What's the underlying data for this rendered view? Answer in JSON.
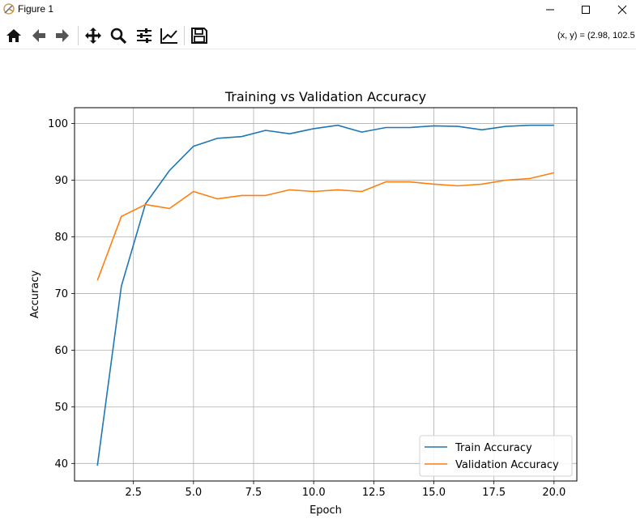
{
  "window": {
    "title": "Figure 1",
    "buttons": [
      {
        "name": "minimize-button",
        "icon": "minimize-icon"
      },
      {
        "name": "maximize-button",
        "icon": "maximize-icon"
      },
      {
        "name": "close-button",
        "icon": "close-icon"
      }
    ]
  },
  "toolbar": {
    "tools": [
      "home-icon",
      "back-arrow-icon",
      "forward-arrow-icon",
      "pan-icon",
      "zoom-icon",
      "configure-subplots-icon",
      "edit-axis-icon",
      "save-icon"
    ],
    "coords": "(x, y) = (2.98, 102.5"
  },
  "colors": {
    "train": "#1f77b4",
    "validation": "#ff7f0e",
    "grid": "#b0b0b0"
  },
  "chart_data": {
    "type": "line",
    "title": "Training vs Validation Accuracy",
    "xlabel": "Epoch",
    "ylabel": "Accuracy",
    "xlim": [
      0.05,
      20.95
    ],
    "ylim": [
      36.9,
      102.8
    ],
    "xticks": [
      2.5,
      5.0,
      7.5,
      10.0,
      12.5,
      15.0,
      17.5,
      20.0
    ],
    "xtick_labels": [
      "2.5",
      "5.0",
      "7.5",
      "10.0",
      "12.5",
      "15.0",
      "17.5",
      "20.0"
    ],
    "yticks": [
      40,
      50,
      60,
      70,
      80,
      90,
      100
    ],
    "ytick_labels": [
      "40",
      "50",
      "60",
      "70",
      "80",
      "90",
      "100"
    ],
    "grid": true,
    "legend_position": "lower-right",
    "x": [
      1,
      2,
      3,
      4,
      5,
      6,
      7,
      8,
      9,
      10,
      11,
      12,
      13,
      14,
      15,
      16,
      17,
      18,
      19,
      20
    ],
    "series": [
      {
        "name": "Train Accuracy",
        "values": [
          39.6,
          71.3,
          85.8,
          91.7,
          96.0,
          97.4,
          97.7,
          98.8,
          98.2,
          99.1,
          99.7,
          98.5,
          99.3,
          99.3,
          99.6,
          99.5,
          98.9,
          99.5,
          99.7,
          99.7
        ]
      },
      {
        "name": "Validation Accuracy",
        "values": [
          72.3,
          83.6,
          85.7,
          85.0,
          88.0,
          86.7,
          87.3,
          87.3,
          88.3,
          88.0,
          88.3,
          88.0,
          89.7,
          89.7,
          89.3,
          89.0,
          89.3,
          90.0,
          90.3,
          91.3
        ]
      }
    ]
  }
}
